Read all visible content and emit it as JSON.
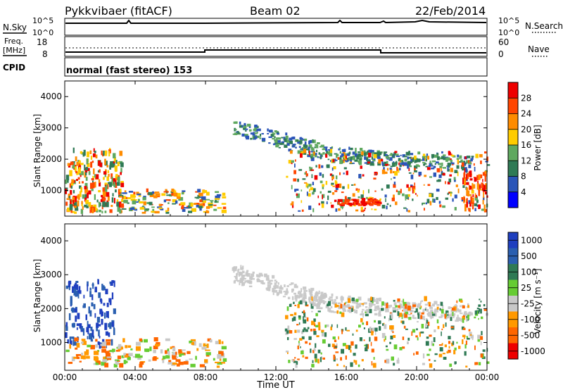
{
  "header": {
    "station": "Pykkvibaer (fitACF)",
    "beam": "Beam 02",
    "date": "22/Feb/2014"
  },
  "noise_panel": {
    "left_label": "N.Sky",
    "right_label": "N.Search",
    "left_ticks": [
      "10^5",
      "10^0"
    ],
    "right_ticks": [
      "10^5",
      "10^0"
    ]
  },
  "freq_panel": {
    "left_label_1": "Freq.",
    "left_label_2": "[MHz]",
    "right_label": "Nave",
    "left_ticks": [
      "18",
      "8"
    ],
    "right_ticks": [
      "60",
      "0"
    ]
  },
  "cpid_panel": {
    "label": "CPID",
    "text": "normal (fast stereo) 153"
  },
  "colors": {
    "power_scale": [
      "#0000ff",
      "#2b55b8",
      "#2f7a55",
      "#5fa85f",
      "#ffcc00",
      "#ff8c00",
      "#ff4500",
      "#ee0000"
    ],
    "velocity_scale": [
      "#1f3fbf",
      "#2a5fb0",
      "#2f7a55",
      "#66cc33",
      "#c8c8c8",
      "#ff9900",
      "#ff6600",
      "#ee0000"
    ]
  },
  "chart_data": [
    {
      "type": "heatmap",
      "name": "power",
      "ylabel": "Slant Range [km]",
      "colorbar_label": "Power [dB]",
      "colorbar_ticks": [
        "28",
        "24",
        "20",
        "16",
        "12",
        "8",
        "4"
      ],
      "ylim": [
        180,
        4500
      ],
      "yticks": [
        "4000",
        "3000",
        "2000",
        "1000"
      ],
      "xticks": [
        "00:00",
        "04:00",
        "08:00",
        "12:00",
        "16:00",
        "20:00",
        "00:00"
      ]
    },
    {
      "type": "heatmap",
      "name": "velocity",
      "ylabel": "Slant Range [km]",
      "colorbar_label": "Velocity [m s⁻¹]",
      "colorbar_ticks": [
        "1000",
        "500",
        "100",
        "25",
        "-25",
        "-100",
        "-500",
        "-1000"
      ],
      "ylim": [
        180,
        4500
      ],
      "yticks": [
        "4000",
        "3000",
        "2000",
        "1000"
      ],
      "xticks": [
        "00:00",
        "04:00",
        "08:00",
        "12:00",
        "16:00",
        "20:00",
        "00:00"
      ],
      "xlabel": "Time UT"
    }
  ]
}
